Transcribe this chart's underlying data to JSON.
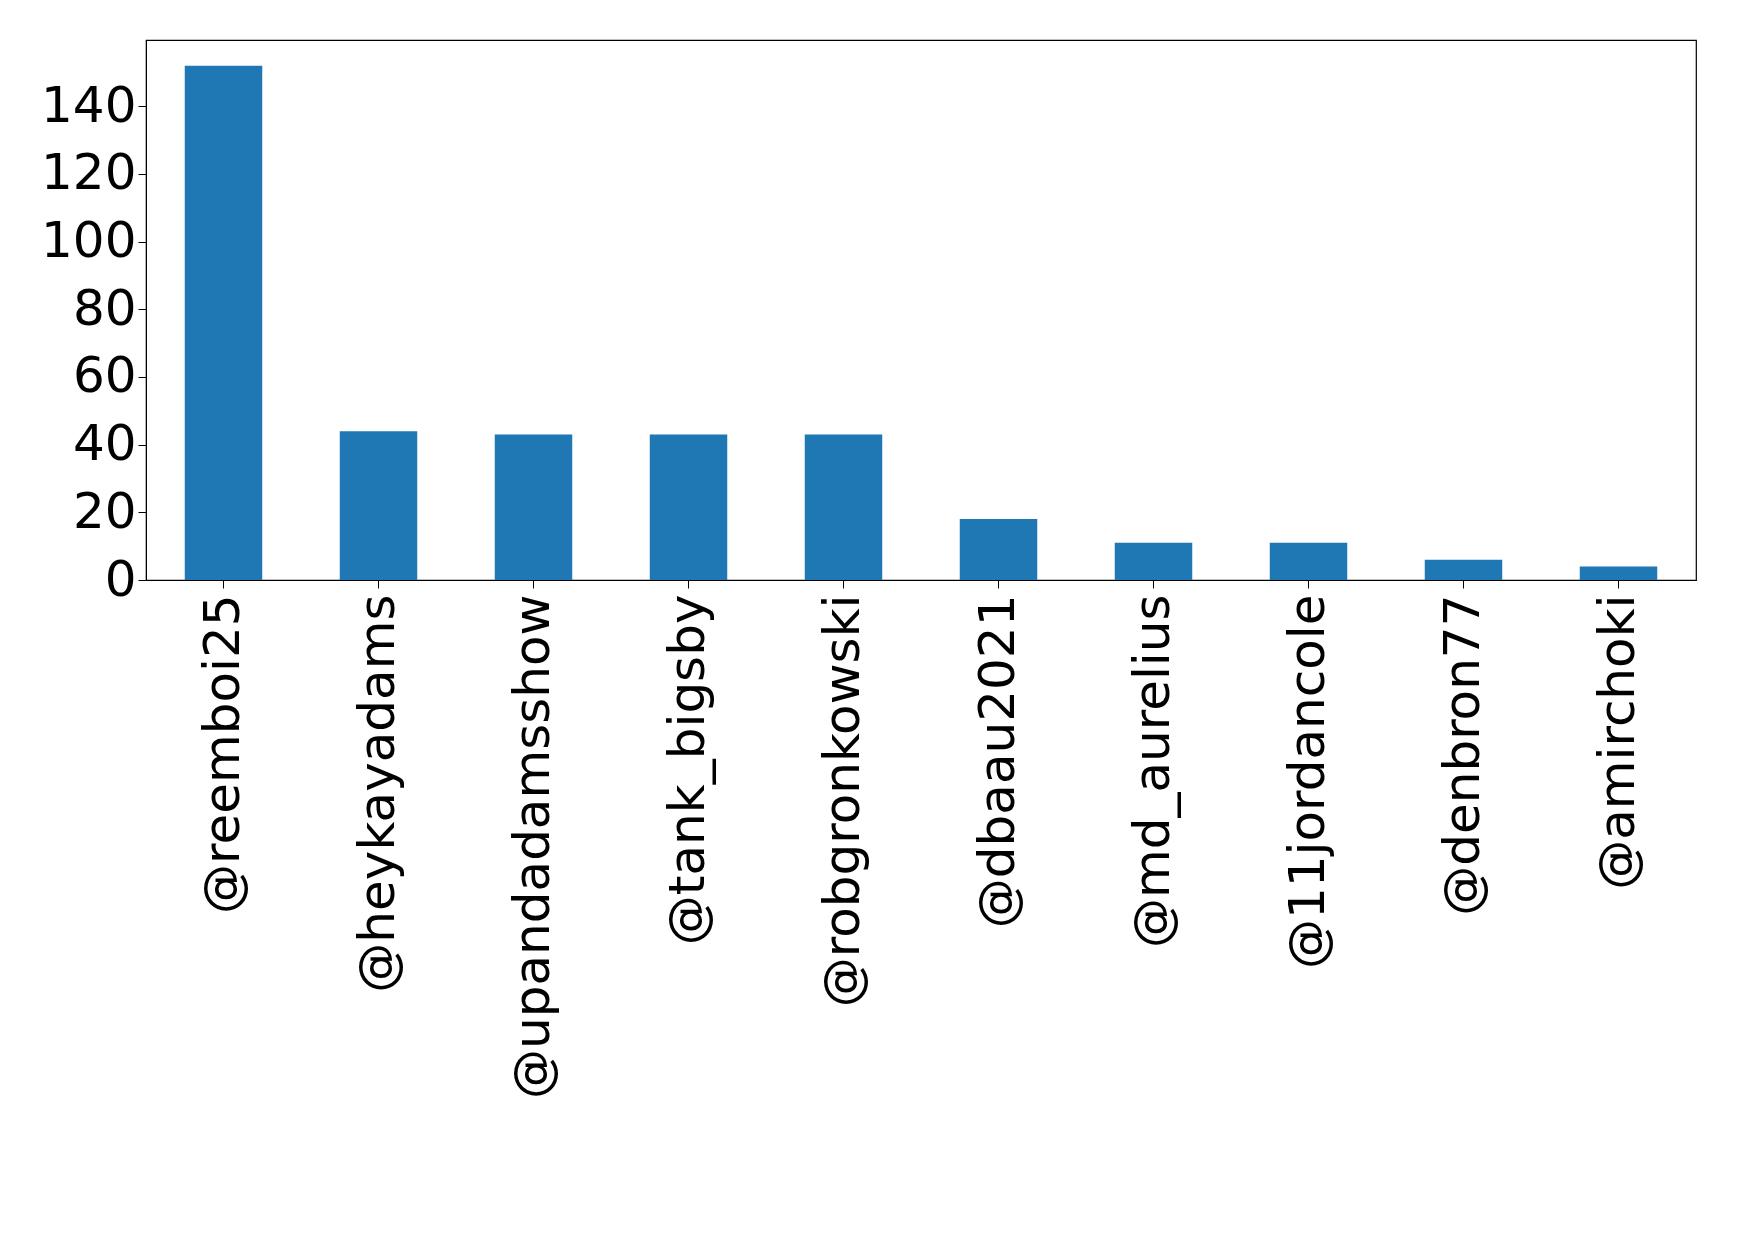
{
  "chart_data": {
    "type": "bar",
    "categories": [
      "@reemboi25",
      "@heykayadams",
      "@upandadamsshow",
      "@tank_bigsby",
      "@robgronkowski",
      "@dbaau2021",
      "@md_aurelius",
      "@11jordancole",
      "@denbron77",
      "@amirchoki"
    ],
    "values": [
      152,
      44,
      43,
      43,
      43,
      18,
      11,
      11,
      6,
      4
    ],
    "color": "#1f77b4",
    "ylim": [
      0,
      159.6
    ],
    "yticks": [
      0,
      20,
      40,
      60,
      80,
      100,
      120,
      140
    ],
    "grid": false
  }
}
